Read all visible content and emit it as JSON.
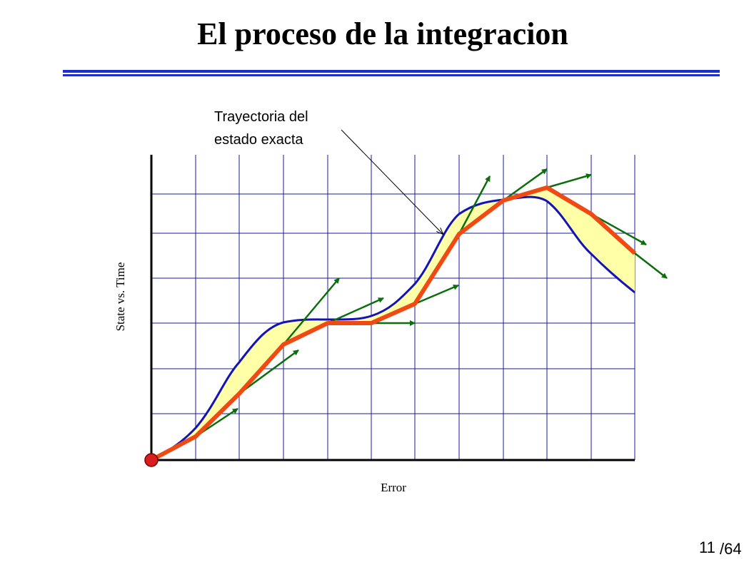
{
  "title": "El proceso de la integracion",
  "annotation": {
    "lines": [
      "Trayectoria del",
      "estado exacta"
    ]
  },
  "axis_labels": {
    "y": "State vs. Time",
    "x": "Error"
  },
  "page_number": {
    "current": "11",
    "total": "/64"
  }
}
